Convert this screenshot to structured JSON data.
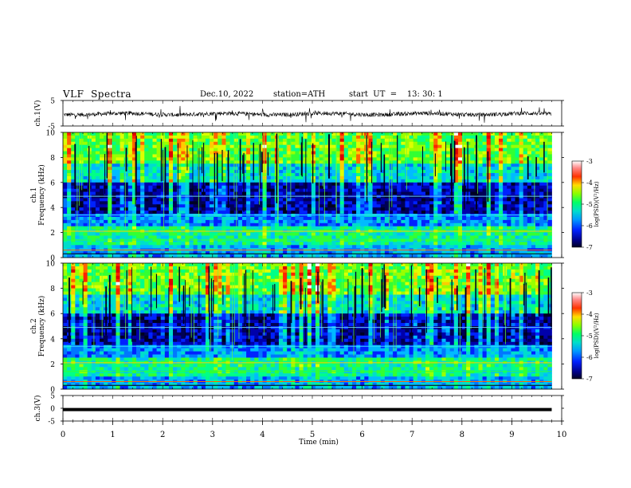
{
  "header": {
    "title": "VLF  Spectra",
    "date": "Dec.10, 2022",
    "station": "station=ATH",
    "start": "start  UT  =    13: 30: 1"
  },
  "chart_data": [
    {
      "type": "line",
      "panel": "ch1-waveform",
      "ylabel": "ch.1(V)",
      "ylim": [
        -5,
        5
      ],
      "yticks": [
        "5",
        "-5"
      ],
      "xlim": [
        0,
        10
      ],
      "description_level": 0,
      "series": [
        {
          "values_range": [
            -1.5,
            1.5
          ]
        }
      ]
    },
    {
      "type": "heatmap",
      "panel": "ch1-spectrogram",
      "ylabel": "ch.1\nFrequency  (kHz)",
      "ylabel_lines": [
        "ch.1",
        "Frequency  (kHz)"
      ],
      "ylim": [
        0,
        10
      ],
      "yticks": [
        "0",
        "2",
        "4",
        "6",
        "8",
        "10"
      ],
      "xlim": [
        0,
        9.8
      ],
      "colorbar": {
        "label": "log(PSD)(V²/Hz)",
        "ticks": [
          "-3",
          "-4",
          "-5",
          "-6",
          "-7"
        ],
        "range": [
          -7,
          -3
        ],
        "colors": [
          "#000033",
          "#0000cc",
          "#0066ff",
          "#00ccff",
          "#00ff99",
          "#66ff33",
          "#ccff00",
          "#ffcc00",
          "#ff3300",
          "#cc0000",
          "#ffffff"
        ]
      }
    },
    {
      "type": "heatmap",
      "panel": "ch2-spectrogram",
      "ylabel_lines": [
        "ch.2",
        "Frequency  (kHz)"
      ],
      "ylim": [
        0,
        10
      ],
      "yticks": [
        "0",
        "2",
        "4",
        "6",
        "8",
        "10"
      ],
      "xlim": [
        0,
        9.8
      ],
      "colorbar": {
        "label": "log(PSD)(V²/Hz)",
        "ticks": [
          "-3",
          "-4",
          "-5",
          "-6",
          "-7"
        ],
        "range": [
          -7,
          -3
        ]
      }
    },
    {
      "type": "line",
      "panel": "ch3-waveform",
      "ylabel": "ch.3(V)",
      "ylim": [
        -5,
        5
      ],
      "yticks": [
        "5",
        "0",
        "-5"
      ],
      "xlim": [
        0,
        10
      ],
      "series": [
        {
          "values_range": [
            -0.5,
            -0.5
          ]
        }
      ]
    }
  ],
  "xaxis": {
    "label": "Time  (min)",
    "ticks": [
      "0",
      "1",
      "2",
      "3",
      "4",
      "5",
      "6",
      "7",
      "8",
      "9",
      "10"
    ]
  }
}
